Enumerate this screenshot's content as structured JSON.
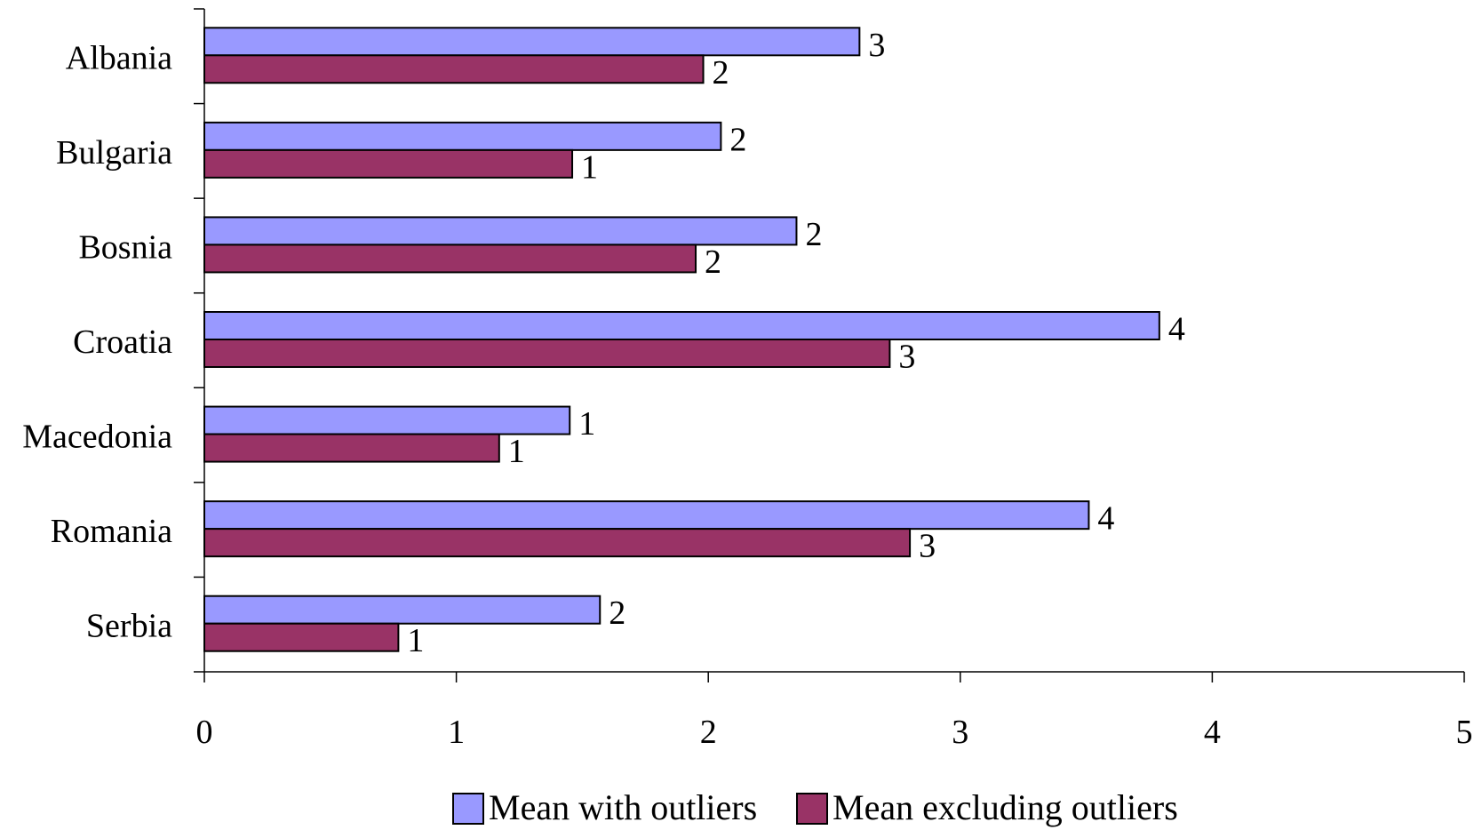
{
  "chart_data": {
    "type": "bar",
    "orientation": "horizontal",
    "categories": [
      "Albania",
      "Bulgaria",
      "Bosnia",
      "Croatia",
      "Macedonia",
      "Romania",
      "Serbia"
    ],
    "series": [
      {
        "name": "Mean with outliers",
        "values": [
          2.6,
          2.05,
          2.35,
          3.79,
          1.45,
          3.51,
          1.57
        ],
        "data_labels": [
          "3",
          "2",
          "2",
          "4",
          "1",
          "4",
          "2"
        ],
        "color": "#9999FF"
      },
      {
        "name": "Mean excluding outliers",
        "values": [
          1.98,
          1.46,
          1.95,
          2.72,
          1.17,
          2.8,
          0.77
        ],
        "data_labels": [
          "2",
          "1",
          "2",
          "3",
          "1",
          "3",
          "1"
        ],
        "color": "#993366"
      }
    ],
    "xlim": [
      0,
      5
    ],
    "x_ticks": [
      "0",
      "1",
      "2",
      "3",
      "4",
      "5"
    ],
    "grid": false,
    "legend_position": "bottom"
  }
}
